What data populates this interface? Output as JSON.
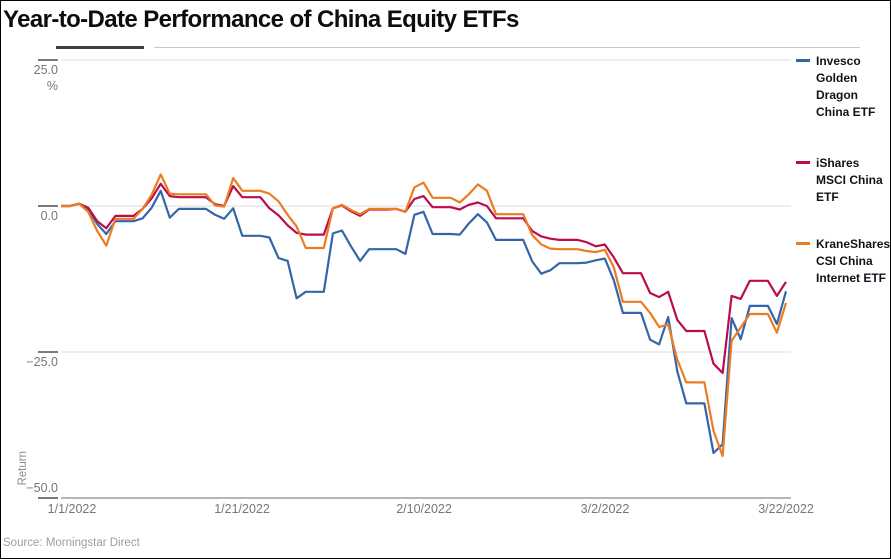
{
  "title": "Year-to-Date Performance of China Equity ETFs",
  "source": "Source: Morningstar Direct",
  "chart_data": {
    "type": "line",
    "title": "Year-to-Date Performance of China Equity ETFs",
    "ylabel": "Return",
    "y_unit": "%",
    "ylim": [
      -50,
      25
    ],
    "grid": true,
    "legend_position": "right",
    "x_start_label": "1/1/2022",
    "x_end_label": "3/22/2022",
    "x_is_calendar_day_offset_from": "1/1/2022",
    "x_range_days": [
      0,
      80
    ],
    "x_tick_days": [
      0,
      20,
      40,
      60,
      80
    ],
    "x_tick_labels": [
      "1/1/2022",
      "1/21/2022",
      "2/10/2022",
      "3/2/2022",
      "3/22/2022"
    ],
    "y_ticks": [
      25,
      0,
      -25,
      -50
    ],
    "y_tick_labels": [
      "25.0",
      "0.0",
      "−25.0",
      "−50.0"
    ],
    "series": [
      {
        "name": "Invesco Golden Dragon China ETF",
        "color": "#3565a9",
        "values": [
          0,
          0,
          0.4,
          -0.6,
          -3.1,
          -4.8,
          -2.6,
          -2.6,
          -2.6,
          -2.1,
          -0.3,
          2.6,
          -2,
          -0.5,
          -0.5,
          -0.5,
          -0.5,
          -1.5,
          -2.2,
          -0.4,
          -5.1,
          -5.1,
          -5.1,
          -5.4,
          -8.9,
          -9.4,
          -15.8,
          -14.7,
          -14.7,
          -14.7,
          -4.7,
          -4.2,
          -6.9,
          -9.4,
          -7.4,
          -7.4,
          -7.4,
          -7.4,
          -8.2,
          -1.5,
          -1,
          -4.8,
          -4.8,
          -4.8,
          -4.9,
          -3,
          -1.4,
          -2.8,
          -5.8,
          -5.8,
          -5.8,
          -5.8,
          -9.5,
          -11.6,
          -11,
          -9.8,
          -9.8,
          -9.8,
          -9.7,
          -9.3,
          -9,
          -12.7,
          -18.3,
          -18.3,
          -18.3,
          -22.9,
          -23.7,
          -19,
          -28.3,
          -33.8,
          -33.8,
          -33.8,
          -42.3,
          -40.8,
          -19.2,
          -22.8,
          -17.1,
          -17.1,
          -17.1,
          -20.2,
          -14.6
        ]
      },
      {
        "name": "iShares MSCI China ETF",
        "color": "#bb0d4d",
        "values": [
          0,
          0,
          0.4,
          -0.3,
          -2.6,
          -3.8,
          -1.7,
          -1.7,
          -1.7,
          -0.5,
          1.3,
          3.8,
          1.7,
          1.5,
          1.5,
          1.5,
          1.5,
          0.3,
          0,
          3.4,
          1.5,
          1.5,
          1.5,
          -0.4,
          -1.6,
          -3.3,
          -4.6,
          -4.9,
          -4.9,
          -4.9,
          -0.4,
          0.1,
          -0.9,
          -1.7,
          -0.6,
          -0.6,
          -0.6,
          -0.5,
          -1,
          1.2,
          1.7,
          -0.2,
          -0.2,
          -0.2,
          -0.6,
          0.2,
          0.6,
          0,
          -2.1,
          -2.1,
          -2.1,
          -2.1,
          -4.3,
          -5.2,
          -5.6,
          -5.8,
          -5.8,
          -5.8,
          -6.2,
          -6.9,
          -6.6,
          -8.8,
          -11.5,
          -11.5,
          -11.5,
          -14.9,
          -15.6,
          -14.7,
          -19.5,
          -21.4,
          -21.4,
          -21.4,
          -27,
          -28.6,
          -15.4,
          -15.9,
          -12.8,
          -12.8,
          -12.8,
          -15.4,
          -13
        ]
      },
      {
        "name": "KraneShares CSI China Internet ETF",
        "color": "#ec7c22",
        "values": [
          0,
          0,
          0.4,
          -1,
          -4.3,
          -6.8,
          -2.2,
          -2.2,
          -2.2,
          -0.5,
          1.9,
          5.4,
          2.1,
          2,
          2,
          2,
          2,
          0.1,
          -0.1,
          4.8,
          2.6,
          2.6,
          2.6,
          2.1,
          0.8,
          -1.5,
          -3.5,
          -7.2,
          -7.2,
          -7.2,
          -0.4,
          0.2,
          -0.7,
          -1.4,
          -0.5,
          -0.5,
          -0.5,
          -0.5,
          -1,
          3.2,
          4,
          1.4,
          1.4,
          1.4,
          0.6,
          2,
          3.7,
          2.6,
          -1.4,
          -1.4,
          -1.4,
          -1.4,
          -5,
          -6.6,
          -7.3,
          -7.4,
          -7.4,
          -7.4,
          -7.7,
          -7.9,
          -7.5,
          -10.5,
          -16.4,
          -16.4,
          -16.4,
          -18.3,
          -20.7,
          -20.3,
          -26.3,
          -30.2,
          -30.2,
          -30.2,
          -38.5,
          -42.8,
          -23.1,
          -20.8,
          -18.5,
          -18.5,
          -18.5,
          -21.7,
          -16.6
        ]
      }
    ]
  }
}
